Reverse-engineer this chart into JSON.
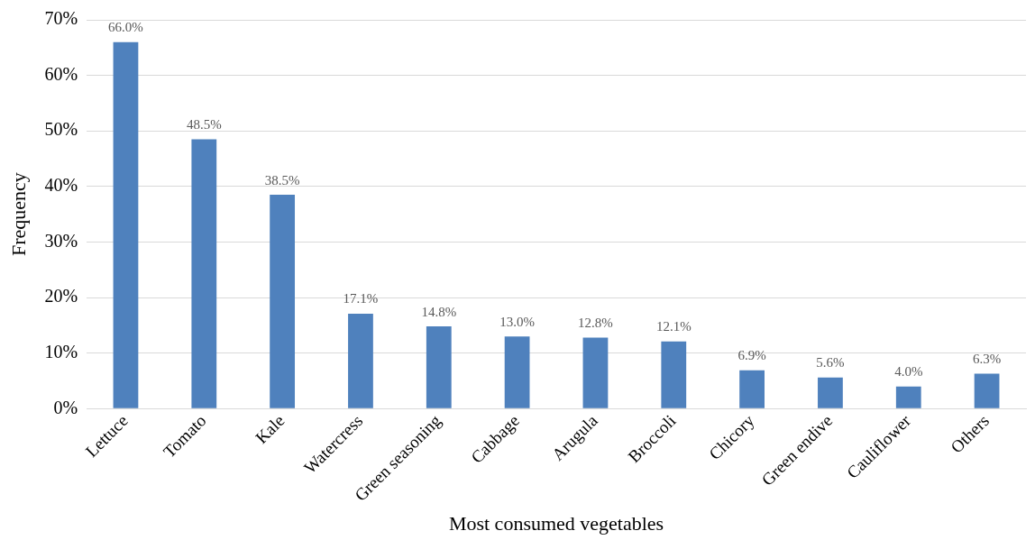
{
  "chart_data": {
    "type": "bar",
    "xlabel": "Most consumed vegetables",
    "ylabel": "Frequency",
    "categories": [
      "Lettuce",
      "Tomato",
      "Kale",
      "Watercress",
      "Green seasoning",
      "Cabbage",
      "Arugula",
      "Broccoli",
      "Chicory",
      "Green endive",
      "Cauliflower",
      "Others"
    ],
    "values": [
      66.0,
      48.5,
      38.5,
      17.1,
      14.8,
      13.0,
      12.8,
      12.1,
      6.9,
      5.6,
      4.0,
      6.3
    ],
    "value_labels": [
      "66.0%",
      "48.5%",
      "38.5%",
      "17.1%",
      "14.8%",
      "13.0%",
      "12.8%",
      "12.1%",
      "6.9%",
      "5.6%",
      "4.0%",
      "6.3%"
    ],
    "color": "#4f81bd",
    "ylim": [
      0,
      70
    ],
    "yticks": [
      {
        "value": 0,
        "label": "0%"
      },
      {
        "value": 10,
        "label": "10%"
      },
      {
        "value": 20,
        "label": "20%"
      },
      {
        "value": 30,
        "label": "30%"
      },
      {
        "value": 40,
        "label": "40%"
      },
      {
        "value": 50,
        "label": "50%"
      },
      {
        "value": 60,
        "label": "60%"
      },
      {
        "value": 70,
        "label": "70%"
      }
    ],
    "grid": "y",
    "legend": false
  }
}
